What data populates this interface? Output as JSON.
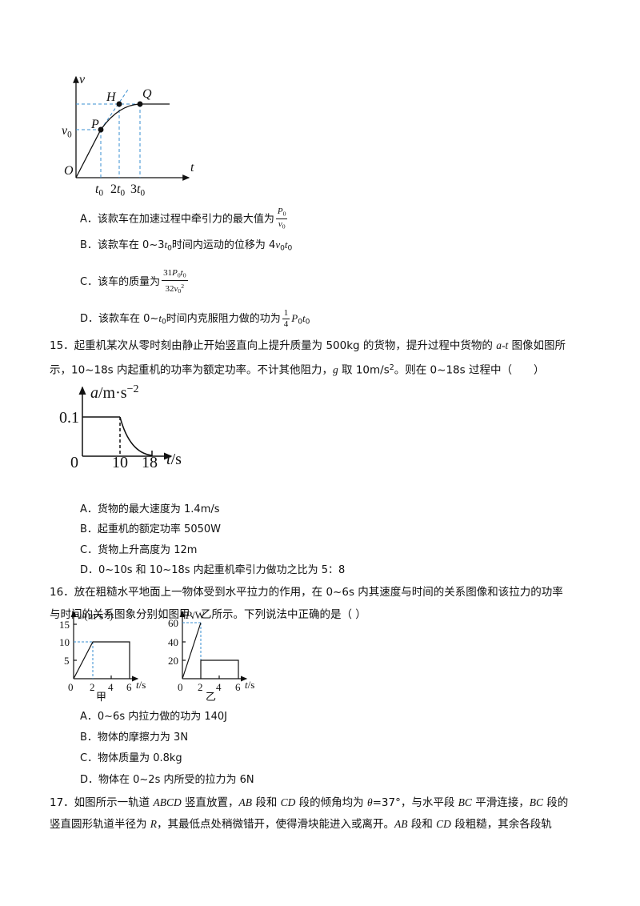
{
  "q14": {
    "figure": {
      "v": [
        {
          "t": "v",
          "s": "i"
        }
      ],
      "t": [
        {
          "t": "t",
          "s": "i"
        }
      ],
      "O": "O",
      "H": "H",
      "Q": "Q",
      "P": "P",
      "v0": [
        {
          "t": "v",
          "s": "i"
        },
        {
          "t": "0",
          "s": "sub"
        }
      ],
      "ticks": [
        [
          {
            "t": "t",
            "s": "i"
          },
          {
            "t": "0",
            "s": "sub"
          }
        ],
        [
          {
            "t": "2"
          },
          {
            "t": "t",
            "s": "i"
          },
          {
            "t": "0",
            "s": "sub"
          }
        ],
        [
          {
            "t": "3"
          },
          {
            "t": "t",
            "s": "i"
          },
          {
            "t": "0",
            "s": "sub"
          }
        ]
      ]
    },
    "options": [
      [
        {
          "t": "A．该款车在加速过程中牵引力的最大值为"
        },
        {
          "frac": [
            [
              {
                "t": "P",
                "s": "i"
              },
              {
                "t": "0",
                "s": "sub"
              }
            ],
            [
              {
                "t": "v",
                "s": "i"
              },
              {
                "t": "0",
                "s": "sub"
              }
            ]
          ]
        }
      ],
      [
        {
          "t": "B．该款车在 0~3"
        },
        {
          "t": "t",
          "s": "i"
        },
        {
          "t": "0",
          "s": "sub"
        },
        {
          "t": "时间内运动的位移为 4"
        },
        {
          "t": "v",
          "s": "i"
        },
        {
          "t": "0",
          "s": "sub"
        },
        {
          "t": "t",
          "s": "i"
        },
        {
          "t": "0",
          "s": "sub"
        }
      ],
      [
        {
          "t": "C．该车的质量为"
        },
        {
          "frac": [
            [
              {
                "t": "31"
              },
              {
                "t": "P",
                "s": "i"
              },
              {
                "t": "0",
                "s": "sub"
              },
              {
                "t": "t",
                "s": "i"
              },
              {
                "t": "0",
                "s": "sub"
              }
            ],
            [
              {
                "t": "32"
              },
              {
                "t": "v",
                "s": "i"
              },
              {
                "t": "0",
                "s": "sub"
              },
              {
                "t": "2",
                "s": "sup"
              }
            ]
          ]
        }
      ],
      [
        {
          "t": "D．该款车在 0~"
        },
        {
          "t": "t",
          "s": "i"
        },
        {
          "t": "0",
          "s": "sub"
        },
        {
          "t": "时间内克服阻力做的功为"
        },
        {
          "frac": [
            [
              {
                "t": "1"
              }
            ],
            [
              {
                "t": "4"
              }
            ]
          ]
        },
        {
          "t": "P",
          "s": "i"
        },
        {
          "t": "0",
          "s": "sub"
        },
        {
          "t": "t",
          "s": "i"
        },
        {
          "t": "0",
          "s": "sub"
        }
      ]
    ]
  },
  "q15": {
    "stem": [
      [
        {
          "t": "15．起重机某次从零时刻由静止开始竖直向上提升质量为 500kg 的货物，提升过程中货物的 "
        },
        {
          "t": "a-t",
          "s": "i"
        },
        {
          "t": " 图像如图所"
        }
      ],
      [
        {
          "t": "示，10~18s 内起重机的功率为额定功率。不计其他阻力，"
        },
        {
          "t": "g",
          "s": "i"
        },
        {
          "t": " 取 10m/s"
        },
        {
          "t": "2",
          "s": "sup"
        },
        {
          "t": "。则在 0~18s 过程中（　　）"
        }
      ]
    ],
    "figure": {
      "y_label": [
        {
          "t": "a",
          "s": "i"
        },
        {
          "t": "/m·s"
        },
        {
          "t": "−2",
          "s": "sup"
        }
      ],
      "x_label": [
        {
          "t": "t",
          "s": "i"
        },
        {
          "t": "/s"
        }
      ],
      "a_value": "0.1",
      "origin": "0",
      "t1": "10",
      "t2": "18"
    },
    "options": [
      "A．货物的最大速度为 1.4m/s",
      "B．起重机的额定功率 5050W",
      "C．货物上升高度为 12m",
      "D．0~10s 和 10~18s 内起重机牵引力做功之比为 5：8"
    ]
  },
  "q16": {
    "stem": [
      [
        {
          "t": "16．放在粗糙水平地面上一物体受到水平拉力的作用，在 0~6s 内其速度与时间的关系图像和该拉力的功率"
        }
      ],
      [
        {
          "t": "与时间的关系图象分别如图甲、乙所示。下列说法中正确的是（ ）"
        }
      ]
    ],
    "figure_a": {
      "y_label": [
        {
          "t": "v",
          "s": "i"
        },
        {
          "t": "/(m·s"
        },
        {
          "t": "-1",
          "s": "sup"
        },
        {
          "t": ")"
        }
      ],
      "x_label": [
        {
          "t": "t",
          "s": "i"
        },
        {
          "t": "/s"
        }
      ],
      "yticks": [
        "15",
        "10",
        "5"
      ],
      "xticks": [
        "0",
        "2",
        "4",
        "6"
      ],
      "caption": "甲"
    },
    "figure_b": {
      "y_label": [
        {
          "t": "P",
          "s": "i"
        },
        {
          "t": "/W"
        }
      ],
      "x_label": [
        {
          "t": "t",
          "s": "i"
        },
        {
          "t": "/s"
        }
      ],
      "yticks": [
        "60",
        "40",
        "20"
      ],
      "xticks": [
        "0",
        "2",
        "4",
        "6"
      ],
      "caption": "乙"
    },
    "options": [
      "A．0~6s 内拉力做的功为 140J",
      "B．物体的摩擦力为 3N",
      "C．物体质量为 0.8kg",
      "D．物体在 0~2s 内所受的拉力为 6N"
    ]
  },
  "q17": {
    "stem": [
      [
        {
          "t": "17．如图所示一轨道 "
        },
        {
          "t": "ABCD",
          "s": "i"
        },
        {
          "t": " 竖直放置，"
        },
        {
          "t": "AB",
          "s": "i"
        },
        {
          "t": " 段和 "
        },
        {
          "t": "CD",
          "s": "i"
        },
        {
          "t": " 段的倾角均为 "
        },
        {
          "t": "θ",
          "s": "i"
        },
        {
          "t": "=37°，与水平段 "
        },
        {
          "t": "BC",
          "s": "i"
        },
        {
          "t": " 平滑连接，"
        },
        {
          "t": "BC",
          "s": "i"
        },
        {
          "t": " 段的"
        }
      ],
      [
        {
          "t": "竖直圆形轨道半径为 "
        },
        {
          "t": "R",
          "s": "i"
        },
        {
          "t": "，其最低点处稍微错开，使得滑块能进入或离开。"
        },
        {
          "t": "AB",
          "s": "i"
        },
        {
          "t": " 段和 "
        },
        {
          "t": "CD",
          "s": "i"
        },
        {
          "t": " 段粗糙，其余各段轨"
        }
      ]
    ]
  }
}
